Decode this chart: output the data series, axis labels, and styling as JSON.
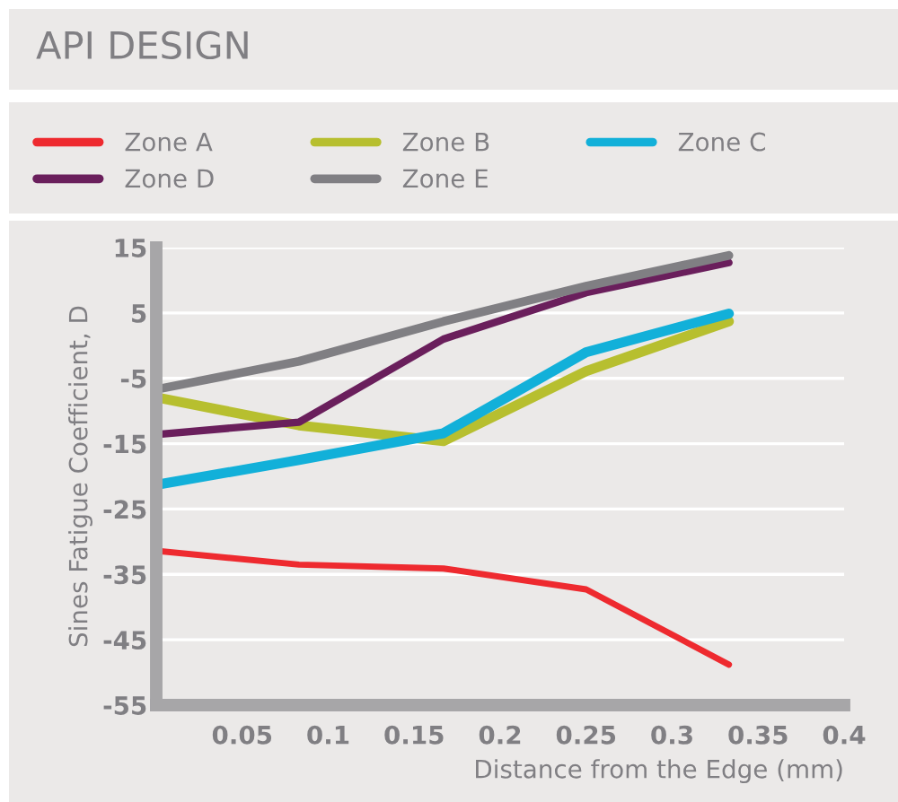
{
  "chart_data": {
    "type": "line",
    "title": "API DESIGN",
    "xlabel": "Distance from the Edge (mm)",
    "ylabel": "Sines Fatigue Coefficient, D",
    "x": [
      0.0,
      0.083,
      0.167,
      0.25,
      0.333
    ],
    "series": [
      {
        "name": "Zone A",
        "color": "#ee2a2f",
        "values": [
          -31.4,
          -33.5,
          -34.1,
          -37.3,
          -48.8
        ]
      },
      {
        "name": "Zone B",
        "color": "#b7bf2f",
        "values": [
          -7.9,
          -12.2,
          -14.6,
          -3.9,
          3.7
        ]
      },
      {
        "name": "Zone C",
        "color": "#12b0d9",
        "values": [
          -21.3,
          -17.5,
          -13.4,
          -1.0,
          4.9
        ]
      },
      {
        "name": "Zone D",
        "color": "#6a1f5c",
        "values": [
          -13.6,
          -11.7,
          1.0,
          8.1,
          12.7
        ]
      },
      {
        "name": "Zone E",
        "color": "#807f83",
        "values": [
          -6.7,
          -2.4,
          3.7,
          9.1,
          13.8
        ]
      }
    ],
    "xlim": [
      0,
      0.4
    ],
    "ylim": [
      -55,
      15
    ],
    "xticks": [
      0.05,
      0.1,
      0.15,
      0.2,
      0.25,
      0.3,
      0.35,
      0.4
    ],
    "yticks": [
      -55,
      -45,
      -35,
      -25,
      -15,
      -5,
      5,
      15
    ],
    "grid": "y",
    "legend": "top",
    "marker": "none",
    "line_style": "solid"
  }
}
